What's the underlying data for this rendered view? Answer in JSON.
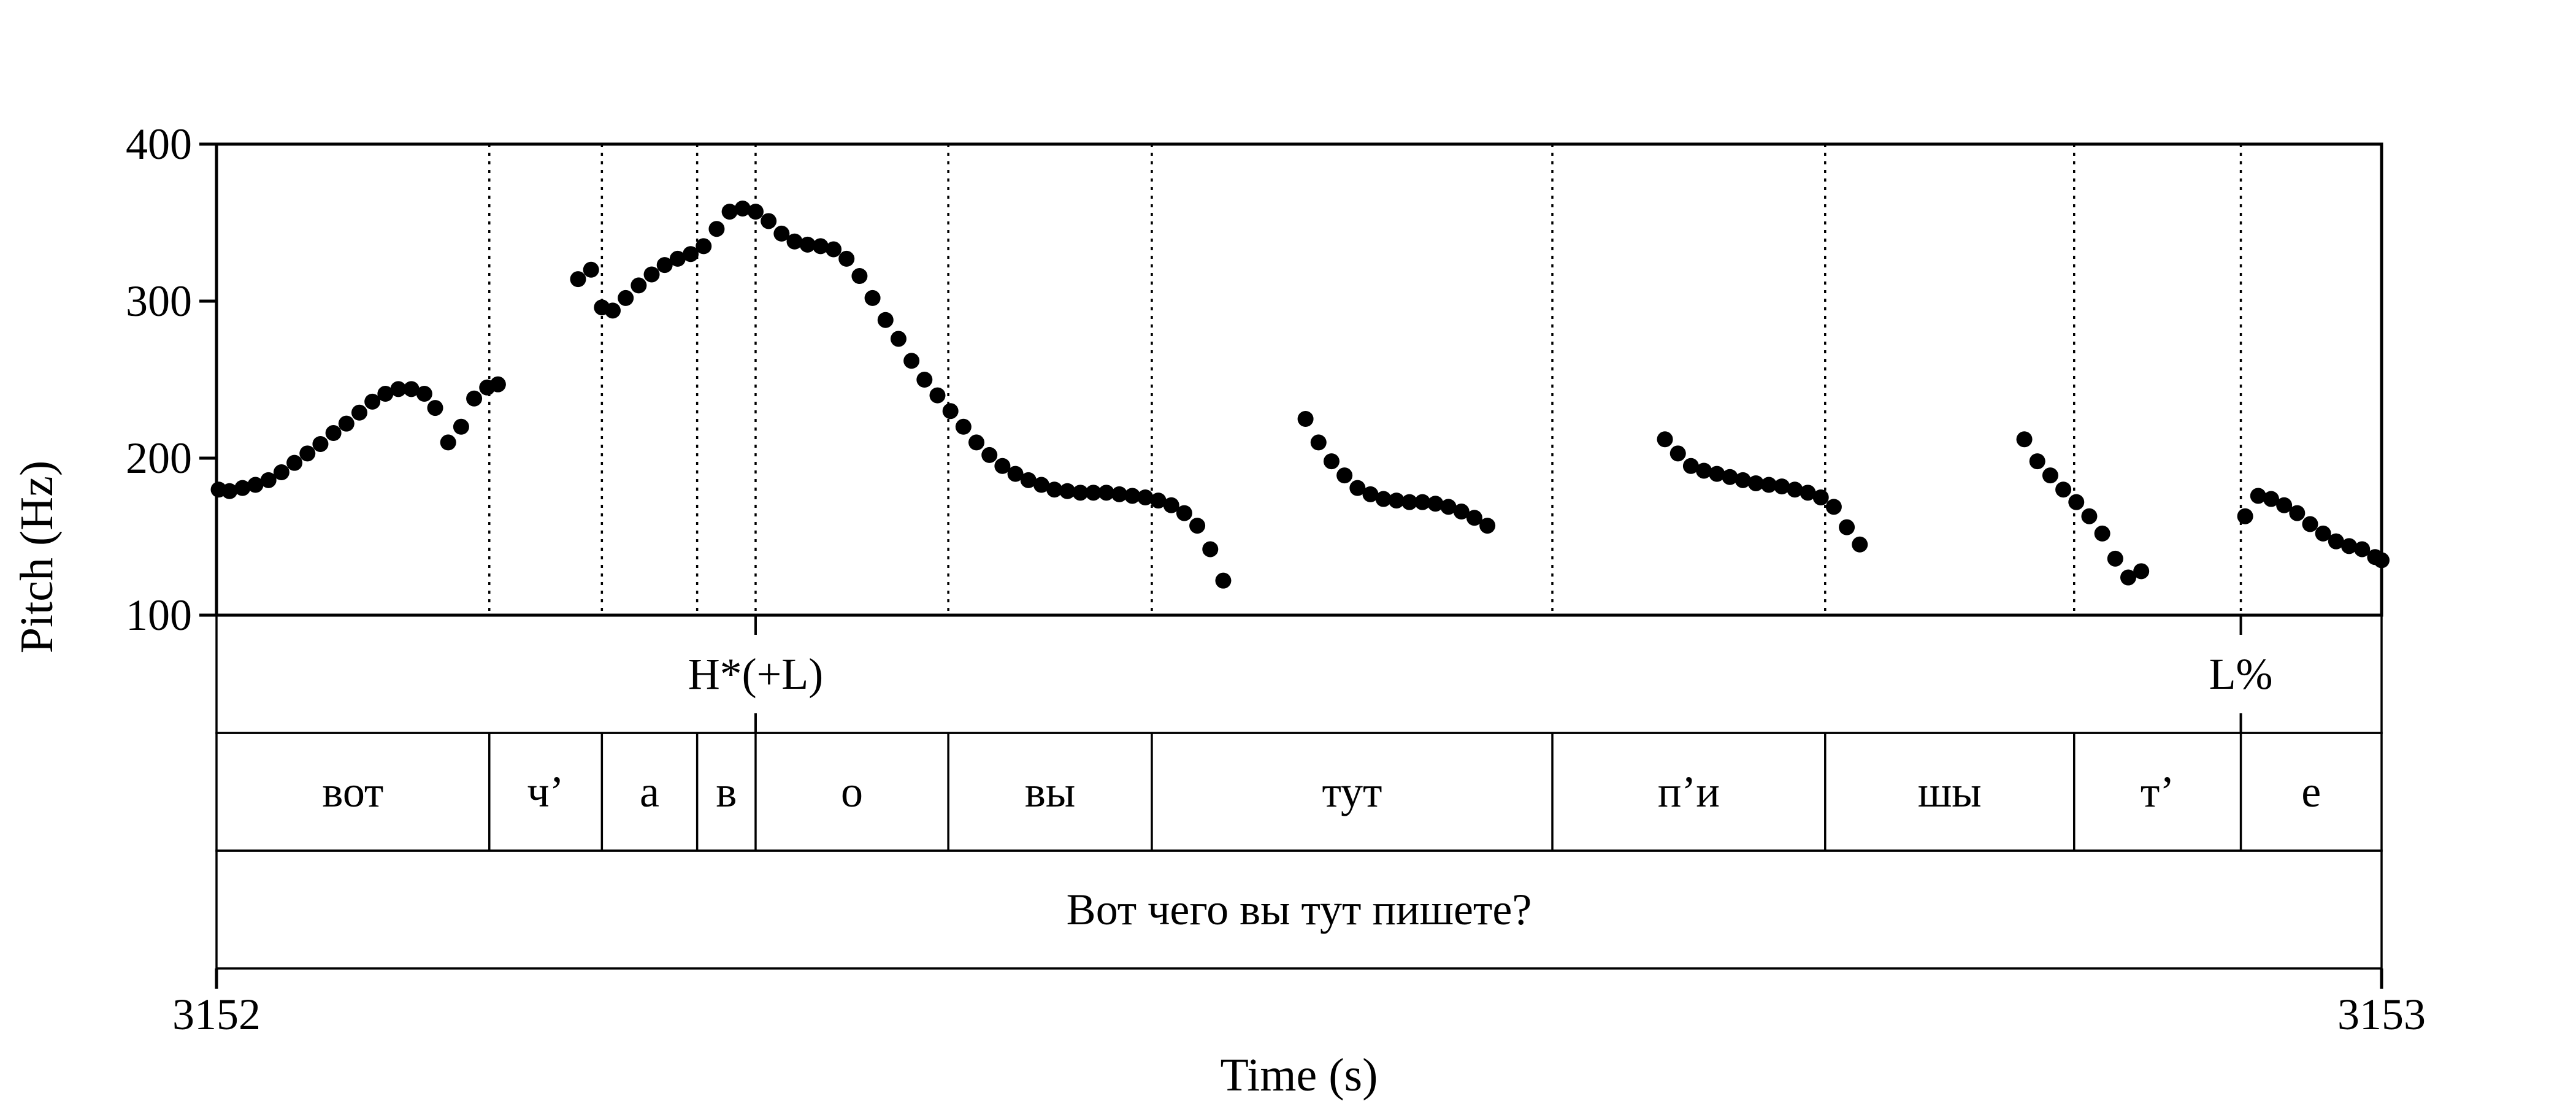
{
  "chart_data": {
    "type": "scatter",
    "xlabel": "Time (s)",
    "ylabel": "Pitch (Hz)",
    "xlim": [
      3152,
      3153
    ],
    "ylim": [
      100,
      400
    ],
    "x_ticks": [
      "3152",
      "3153"
    ],
    "y_ticks": [
      "100",
      "200",
      "300",
      "400"
    ],
    "pitch_points": [
      [
        3152.001,
        180
      ],
      [
        3152.006,
        179
      ],
      [
        3152.012,
        181
      ],
      [
        3152.018,
        183
      ],
      [
        3152.024,
        186
      ],
      [
        3152.03,
        191
      ],
      [
        3152.036,
        197
      ],
      [
        3152.042,
        203
      ],
      [
        3152.048,
        209
      ],
      [
        3152.054,
        216
      ],
      [
        3152.06,
        222
      ],
      [
        3152.066,
        229
      ],
      [
        3152.072,
        236
      ],
      [
        3152.078,
        241
      ],
      [
        3152.084,
        244
      ],
      [
        3152.09,
        244
      ],
      [
        3152.096,
        241
      ],
      [
        3152.101,
        232
      ],
      [
        3152.107,
        210
      ],
      [
        3152.113,
        220
      ],
      [
        3152.119,
        238
      ],
      [
        3152.125,
        245
      ],
      [
        3152.13,
        247
      ],
      [
        3152.167,
        314
      ],
      [
        3152.173,
        320
      ],
      [
        3152.178,
        296
      ],
      [
        3152.183,
        294
      ],
      [
        3152.189,
        302
      ],
      [
        3152.195,
        310
      ],
      [
        3152.201,
        317
      ],
      [
        3152.207,
        323
      ],
      [
        3152.213,
        327
      ],
      [
        3152.219,
        330
      ],
      [
        3152.225,
        335
      ],
      [
        3152.231,
        346
      ],
      [
        3152.237,
        357
      ],
      [
        3152.243,
        359
      ],
      [
        3152.249,
        357
      ],
      [
        3152.255,
        351
      ],
      [
        3152.261,
        343
      ],
      [
        3152.267,
        338
      ],
      [
        3152.273,
        336
      ],
      [
        3152.279,
        335
      ],
      [
        3152.285,
        333
      ],
      [
        3152.291,
        327
      ],
      [
        3152.297,
        316
      ],
      [
        3152.303,
        302
      ],
      [
        3152.309,
        288
      ],
      [
        3152.315,
        276
      ],
      [
        3152.321,
        262
      ],
      [
        3152.327,
        250
      ],
      [
        3152.333,
        240
      ],
      [
        3152.339,
        230
      ],
      [
        3152.345,
        220
      ],
      [
        3152.351,
        210
      ],
      [
        3152.357,
        202
      ],
      [
        3152.363,
        195
      ],
      [
        3152.369,
        190
      ],
      [
        3152.375,
        186
      ],
      [
        3152.381,
        183
      ],
      [
        3152.387,
        180
      ],
      [
        3152.393,
        179
      ],
      [
        3152.399,
        178
      ],
      [
        3152.405,
        178
      ],
      [
        3152.411,
        178
      ],
      [
        3152.417,
        177
      ],
      [
        3152.423,
        176
      ],
      [
        3152.429,
        175
      ],
      [
        3152.435,
        173
      ],
      [
        3152.441,
        170
      ],
      [
        3152.447,
        165
      ],
      [
        3152.453,
        157
      ],
      [
        3152.459,
        142
      ],
      [
        3152.465,
        122
      ],
      [
        3152.503,
        225
      ],
      [
        3152.509,
        210
      ],
      [
        3152.515,
        198
      ],
      [
        3152.521,
        189
      ],
      [
        3152.527,
        181
      ],
      [
        3152.533,
        177
      ],
      [
        3152.539,
        174
      ],
      [
        3152.545,
        173
      ],
      [
        3152.551,
        172
      ],
      [
        3152.557,
        172
      ],
      [
        3152.563,
        171
      ],
      [
        3152.569,
        169
      ],
      [
        3152.575,
        166
      ],
      [
        3152.581,
        162
      ],
      [
        3152.587,
        157
      ],
      [
        3152.669,
        212
      ],
      [
        3152.675,
        203
      ],
      [
        3152.681,
        195
      ],
      [
        3152.687,
        192
      ],
      [
        3152.693,
        190
      ],
      [
        3152.699,
        188
      ],
      [
        3152.705,
        186
      ],
      [
        3152.711,
        184
      ],
      [
        3152.717,
        183
      ],
      [
        3152.723,
        182
      ],
      [
        3152.729,
        180
      ],
      [
        3152.735,
        178
      ],
      [
        3152.741,
        175
      ],
      [
        3152.747,
        169
      ],
      [
        3152.753,
        156
      ],
      [
        3152.759,
        145
      ],
      [
        3152.835,
        212
      ],
      [
        3152.841,
        198
      ],
      [
        3152.847,
        189
      ],
      [
        3152.853,
        180
      ],
      [
        3152.859,
        172
      ],
      [
        3152.865,
        163
      ],
      [
        3152.871,
        152
      ],
      [
        3152.877,
        136
      ],
      [
        3152.883,
        124
      ],
      [
        3152.889,
        128
      ],
      [
        3152.937,
        163
      ],
      [
        3152.943,
        176
      ],
      [
        3152.949,
        174
      ],
      [
        3152.955,
        170
      ],
      [
        3152.961,
        165
      ],
      [
        3152.967,
        158
      ],
      [
        3152.973,
        152
      ],
      [
        3152.979,
        147
      ],
      [
        3152.985,
        144
      ],
      [
        3152.991,
        142
      ],
      [
        3152.997,
        137
      ],
      [
        3153.0,
        135
      ]
    ],
    "boundaries": [
      3152.126,
      3152.178,
      3152.222,
      3152.249,
      3152.338,
      3152.432,
      3152.617,
      3152.743,
      3152.858,
      3152.935
    ],
    "tone_tier": [
      {
        "label": "H*(+L)",
        "time": 3152.249
      },
      {
        "label": "L%",
        "time": 3152.935
      }
    ],
    "segment_tier": [
      {
        "label": "вот",
        "start": 3152.0,
        "end": 3152.126
      },
      {
        "label": "ч’",
        "start": 3152.126,
        "end": 3152.178
      },
      {
        "label": "а",
        "start": 3152.178,
        "end": 3152.222
      },
      {
        "label": "в",
        "start": 3152.222,
        "end": 3152.249
      },
      {
        "label": "о",
        "start": 3152.249,
        "end": 3152.338
      },
      {
        "label": "вы",
        "start": 3152.338,
        "end": 3152.432
      },
      {
        "label": "тут",
        "start": 3152.432,
        "end": 3152.617
      },
      {
        "label": "п’и",
        "start": 3152.617,
        "end": 3152.743
      },
      {
        "label": "шы",
        "start": 3152.743,
        "end": 3152.858
      },
      {
        "label": "т’",
        "start": 3152.858,
        "end": 3152.935
      },
      {
        "label": "е",
        "start": 3152.935,
        "end": 3153.0
      }
    ],
    "sentence_tier": {
      "label": "Вот чего вы тут пишете?",
      "start": 3152.0,
      "end": 3153.0
    },
    "grid": false,
    "marker_color": "#000000"
  }
}
